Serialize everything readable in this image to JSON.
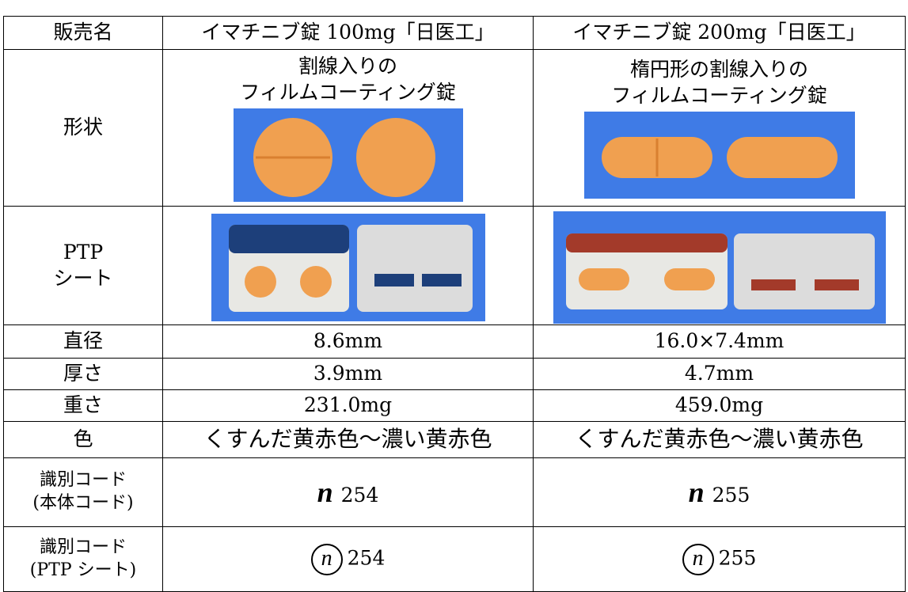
{
  "table": {
    "header": [
      "販売名",
      "イマチニブ錠 100mg「日医工」",
      "イマチニブ錠 200mg「日医工」"
    ],
    "shape": {
      "label": "形状",
      "cells": [
        [
          "割線入りの",
          "フィルムコーティング錠"
        ],
        [
          "楕円形の割線入りの",
          "フィルムコーティング錠"
        ]
      ]
    },
    "ptp": {
      "label": [
        "PTP",
        "シート"
      ]
    },
    "rows": [
      [
        "直径",
        "8.6mm",
        "16.0×7.4mm"
      ],
      [
        "厚さ",
        "3.9mm",
        "4.7mm"
      ],
      [
        "重さ",
        "231.0mg",
        "459.0mg"
      ],
      [
        "色",
        "くすんだ黄赤色～濃い黄赤色",
        "くすんだ黄赤色～濃い黄赤色"
      ]
    ],
    "codes": [
      {
        "label": [
          "識別コード",
          "(本体コード)"
        ],
        "symbol": "n",
        "cells": [
          "254",
          "255"
        ]
      },
      {
        "label": [
          "識別コード",
          "(PTP シート)"
        ],
        "symbol": "n",
        "cells": [
          "254",
          "255"
        ]
      }
    ]
  }
}
